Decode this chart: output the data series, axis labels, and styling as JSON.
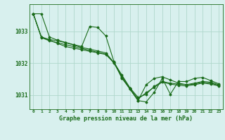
{
  "background_color": "#d8f0ee",
  "grid_color": "#b0d8cc",
  "line_color": "#1a6b1a",
  "xlabel": "Graphe pression niveau de la mer (hPa)",
  "hours": [
    0,
    1,
    2,
    3,
    4,
    5,
    6,
    7,
    8,
    9,
    10,
    11,
    12,
    13,
    14,
    15,
    16,
    17,
    18,
    19,
    20,
    21,
    22,
    23
  ],
  "line1": [
    1033.55,
    1033.55,
    1032.82,
    1032.72,
    1032.65,
    1032.58,
    1032.52,
    1033.15,
    1033.12,
    1032.85,
    1032.05,
    1031.55,
    1031.18,
    1030.82,
    1030.78,
    1031.08,
    1031.52,
    1031.02,
    1031.42,
    1031.42,
    1031.52,
    1031.55,
    1031.45,
    1031.35
  ],
  "line2": [
    1033.55,
    1032.82,
    1032.72,
    1032.62,
    1032.52,
    1032.47,
    1032.42,
    1032.37,
    1032.32,
    1032.27,
    1032.02,
    1031.52,
    1031.18,
    1030.82,
    1031.32,
    1031.52,
    1031.57,
    1031.47,
    1031.37,
    1031.32,
    1031.37,
    1031.42,
    1031.4,
    1031.32
  ],
  "line3": [
    1033.55,
    1032.82,
    1032.74,
    1032.7,
    1032.64,
    1032.57,
    1032.49,
    1032.44,
    1032.38,
    1032.32,
    1032.02,
    1031.62,
    1031.22,
    1030.92,
    1031.02,
    1031.27,
    1031.42,
    1031.37,
    1031.34,
    1031.32,
    1031.34,
    1031.4,
    1031.37,
    1031.3
  ],
  "line4": [
    1033.55,
    1032.8,
    1032.7,
    1032.64,
    1032.58,
    1032.52,
    1032.46,
    1032.4,
    1032.34,
    1032.28,
    1032.0,
    1031.57,
    1031.2,
    1030.87,
    1031.07,
    1031.24,
    1031.4,
    1031.34,
    1031.3,
    1031.28,
    1031.32,
    1031.37,
    1031.34,
    1031.28
  ],
  "ylim_min": 1030.55,
  "ylim_max": 1033.85,
  "yticks": [
    1031,
    1032,
    1033
  ],
  "xticks": [
    0,
    1,
    2,
    3,
    4,
    5,
    6,
    7,
    8,
    9,
    10,
    11,
    12,
    13,
    14,
    15,
    16,
    17,
    18,
    19,
    20,
    21,
    22,
    23
  ],
  "figwidth": 3.2,
  "figheight": 2.0,
  "dpi": 100
}
